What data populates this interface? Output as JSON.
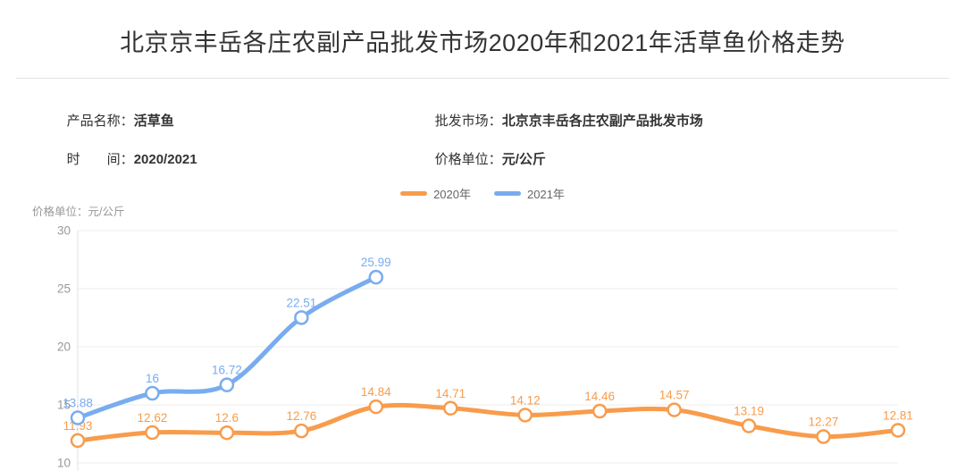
{
  "page": {
    "title": "北京京丰岳各庄农副产品批发市场2020年和2021年活草鱼价格走势"
  },
  "info": {
    "product_label": "产品名称：",
    "product_value": "活草鱼",
    "market_label": "批发市场：",
    "market_value": "北京京丰岳各庄农副产品批发市场",
    "time_label": "时　　间：",
    "time_value": "2020/2021",
    "unit_label": "价格单位：",
    "unit_value": "元/公斤"
  },
  "chart_data": {
    "type": "line",
    "title": "北京京丰岳各庄农副产品批发市场2020年和2021年活草鱼价格走势",
    "ylabel": "价格单位：元/公斤",
    "ylim": [
      10,
      30
    ],
    "yticks": [
      30,
      25,
      20,
      15,
      10
    ],
    "grid": true,
    "legend_position": "top-center",
    "x_point_count": 12,
    "smooth": true,
    "series": [
      {
        "name": "2020年",
        "color": "#f89c4c",
        "values": [
          11.93,
          12.62,
          12.6,
          12.76,
          14.84,
          14.71,
          14.12,
          14.46,
          14.57,
          13.19,
          12.27,
          12.81
        ]
      },
      {
        "name": "2021年",
        "color": "#79acef",
        "values": [
          13.88,
          16,
          16.72,
          22.51,
          25.99
        ]
      }
    ],
    "colors": {
      "grid_line": "#ececec",
      "axis_line": "#e0e0e0",
      "tick_text": "#999999",
      "marker_fill": "#ffffff"
    }
  }
}
